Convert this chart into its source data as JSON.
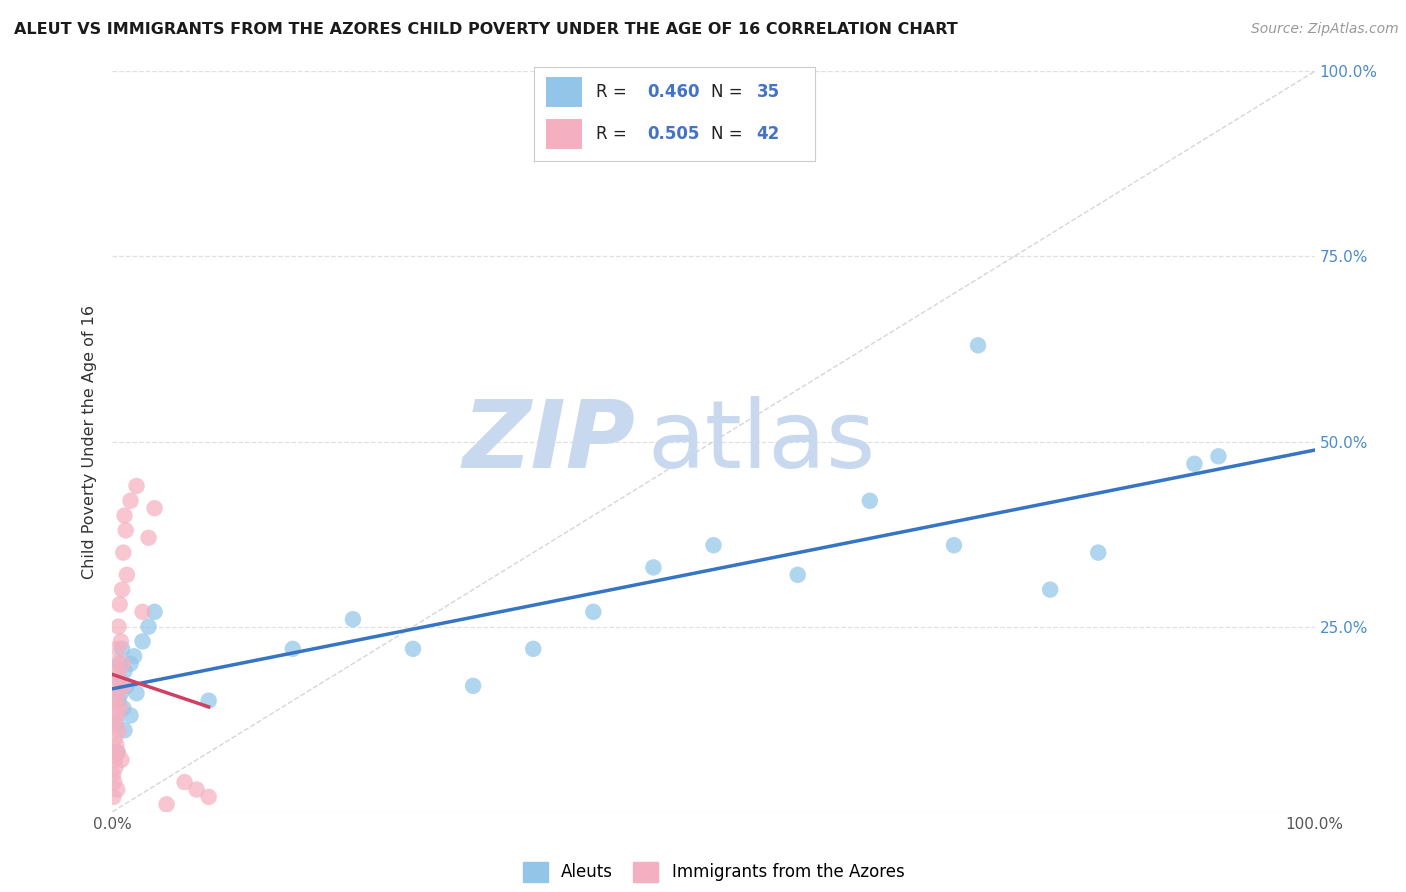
{
  "title": "ALEUT VS IMMIGRANTS FROM THE AZORES CHILD POVERTY UNDER THE AGE OF 16 CORRELATION CHART",
  "source": "Source: ZipAtlas.com",
  "ylabel": "Child Poverty Under the Age of 16",
  "series1_label": "Aleuts",
  "series1_color": "#92c5e8",
  "series2_label": "Immigrants from the Azores",
  "series2_color": "#f4b0c0",
  "series1_R": "0.460",
  "series1_N": "35",
  "series2_R": "0.505",
  "series2_N": "42",
  "background_color": "#ffffff",
  "grid_color": "#e0e0e0",
  "trendline_blue_color": "#3575c3",
  "trendline_pink_color": "#d04060",
  "diagonal_color": "#cccccc",
  "watermark_zip_color": "#c8d8ef",
  "watermark_atlas_color": "#c8d8ef",
  "tick_color": "#4a8ccc",
  "legend_R_color": "#4472c4",
  "legend_N_color": "#4472c4",
  "aleuts_x": [
    0.3,
    0.4,
    0.5,
    0.5,
    0.6,
    0.7,
    0.8,
    0.9,
    1.0,
    1.0,
    1.2,
    1.5,
    1.5,
    1.8,
    2.0,
    2.5,
    3.0,
    3.5,
    8.0,
    15.0,
    20.0,
    25.0,
    30.0,
    35.0,
    40.0,
    45.0,
    50.0,
    57.0,
    63.0,
    70.0,
    72.0,
    78.0,
    82.0,
    90.0,
    92.0
  ],
  "aleuts_y": [
    12.0,
    8.0,
    15.0,
    18.0,
    20.0,
    16.0,
    22.0,
    14.0,
    19.0,
    11.0,
    17.0,
    20.0,
    13.0,
    21.0,
    16.0,
    23.0,
    25.0,
    27.0,
    15.0,
    22.0,
    26.0,
    22.0,
    17.0,
    22.0,
    27.0,
    33.0,
    36.0,
    32.0,
    42.0,
    36.0,
    63.0,
    30.0,
    35.0,
    47.0,
    48.0
  ],
  "azores_x": [
    0.05,
    0.08,
    0.1,
    0.12,
    0.15,
    0.15,
    0.18,
    0.2,
    0.22,
    0.25,
    0.28,
    0.3,
    0.32,
    0.35,
    0.38,
    0.4,
    0.42,
    0.45,
    0.48,
    0.5,
    0.5,
    0.55,
    0.6,
    0.65,
    0.7,
    0.75,
    0.8,
    0.85,
    0.9,
    0.95,
    1.0,
    1.1,
    1.2,
    1.5,
    2.0,
    2.5,
    3.0,
    3.5,
    4.5,
    6.0,
    7.0,
    8.0
  ],
  "azores_y": [
    5.0,
    2.0,
    8.0,
    14.0,
    4.0,
    12.0,
    17.0,
    7.0,
    10.0,
    6.0,
    15.0,
    20.0,
    9.0,
    13.0,
    18.0,
    3.0,
    22.0,
    8.0,
    16.0,
    25.0,
    11.0,
    19.0,
    28.0,
    14.0,
    23.0,
    7.0,
    30.0,
    20.0,
    35.0,
    17.0,
    40.0,
    38.0,
    32.0,
    42.0,
    44.0,
    27.0,
    37.0,
    41.0,
    1.0,
    4.0,
    3.0,
    2.0
  ]
}
